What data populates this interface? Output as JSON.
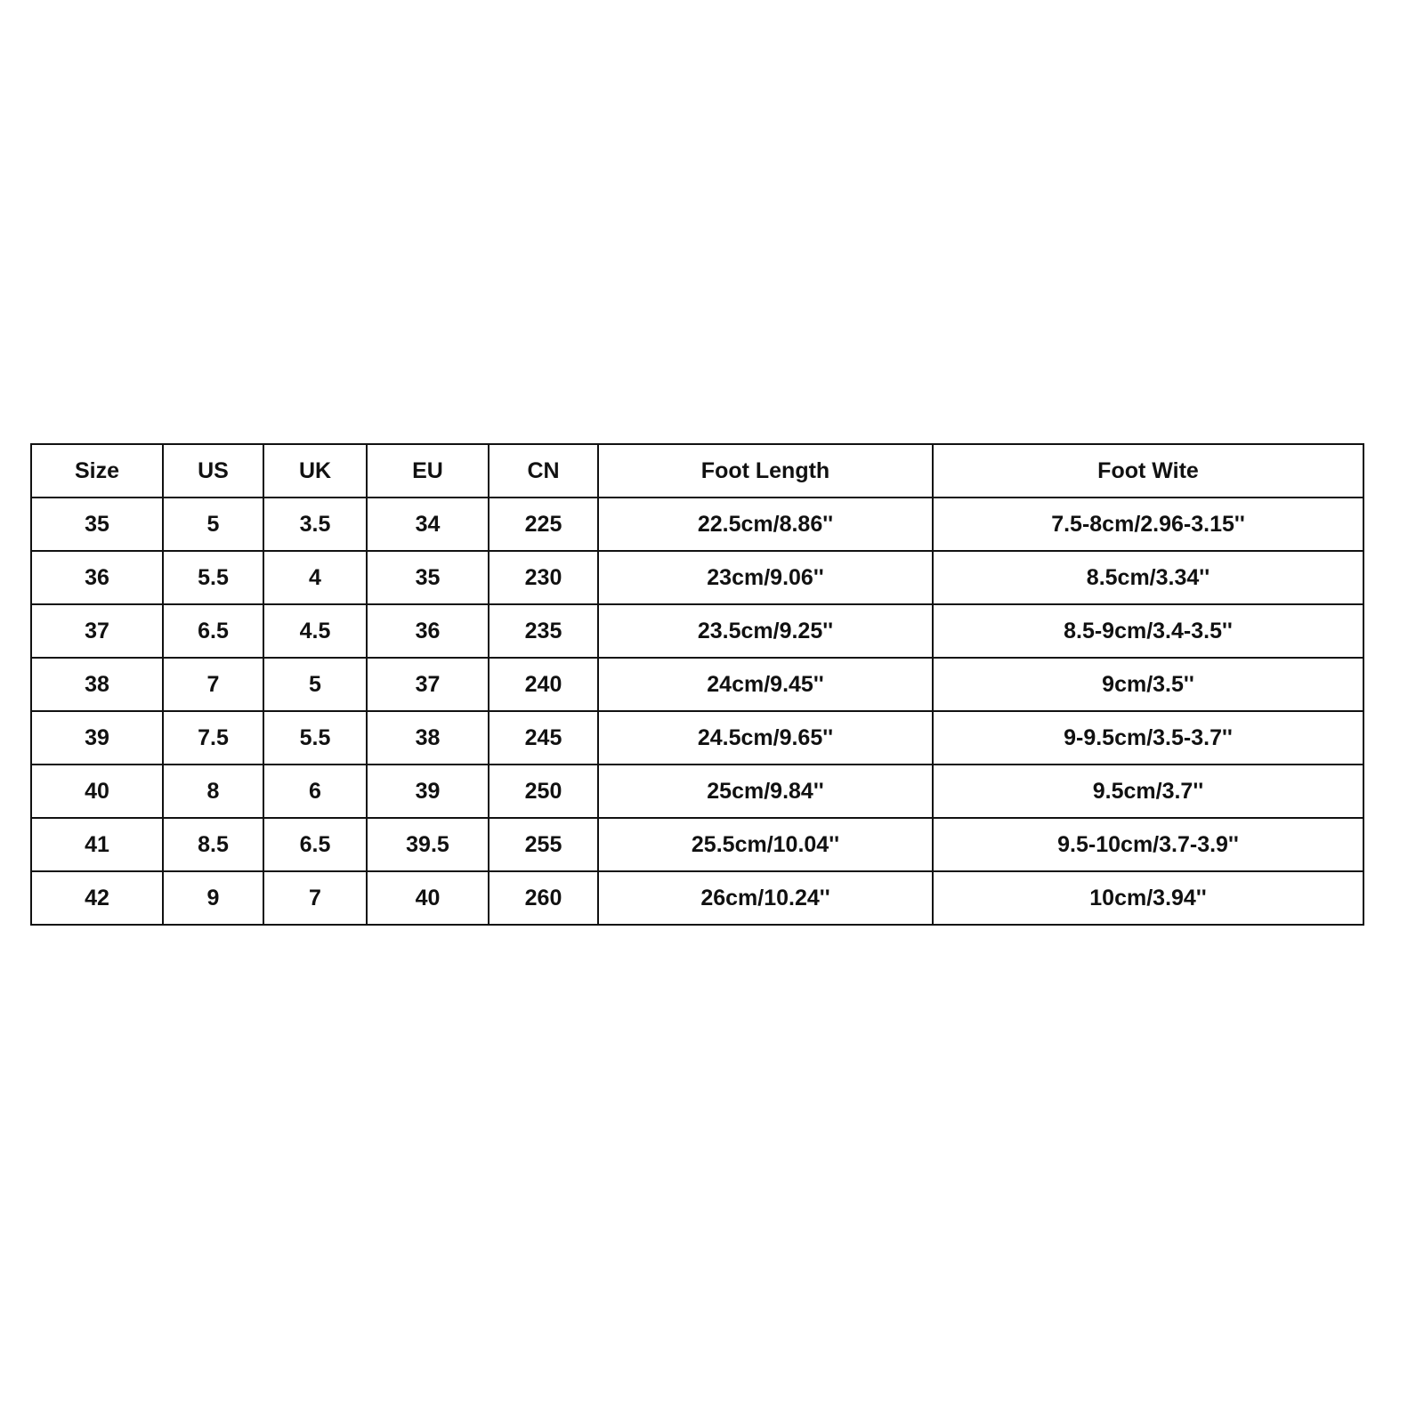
{
  "headers": [
    "Size",
    "US",
    "UK",
    "EU",
    "CN",
    "Foot Length",
    "Foot Wite"
  ],
  "rows": [
    [
      "35",
      "5",
      "3.5",
      "34",
      "225",
      "22.5cm/8.86''",
      "7.5-8cm/2.96-3.15''"
    ],
    [
      "36",
      "5.5",
      "4",
      "35",
      "230",
      "23cm/9.06''",
      "8.5cm/3.34''"
    ],
    [
      "37",
      "6.5",
      "4.5",
      "36",
      "235",
      "23.5cm/9.25''",
      "8.5-9cm/3.4-3.5''"
    ],
    [
      "38",
      "7",
      "5",
      "37",
      "240",
      "24cm/9.45''",
      "9cm/3.5''"
    ],
    [
      "39",
      "7.5",
      "5.5",
      "38",
      "245",
      "24.5cm/9.65''",
      "9-9.5cm/3.5-3.7''"
    ],
    [
      "40",
      "8",
      "6",
      "39",
      "250",
      "25cm/9.84''",
      "9.5cm/3.7''"
    ],
    [
      "41",
      "8.5",
      "6.5",
      "39.5",
      "255",
      "25.5cm/10.04''",
      "9.5-10cm/3.7-3.9''"
    ],
    [
      "42",
      "9",
      "7",
      "40",
      "260",
      "26cm/10.24''",
      "10cm/3.94''"
    ]
  ]
}
